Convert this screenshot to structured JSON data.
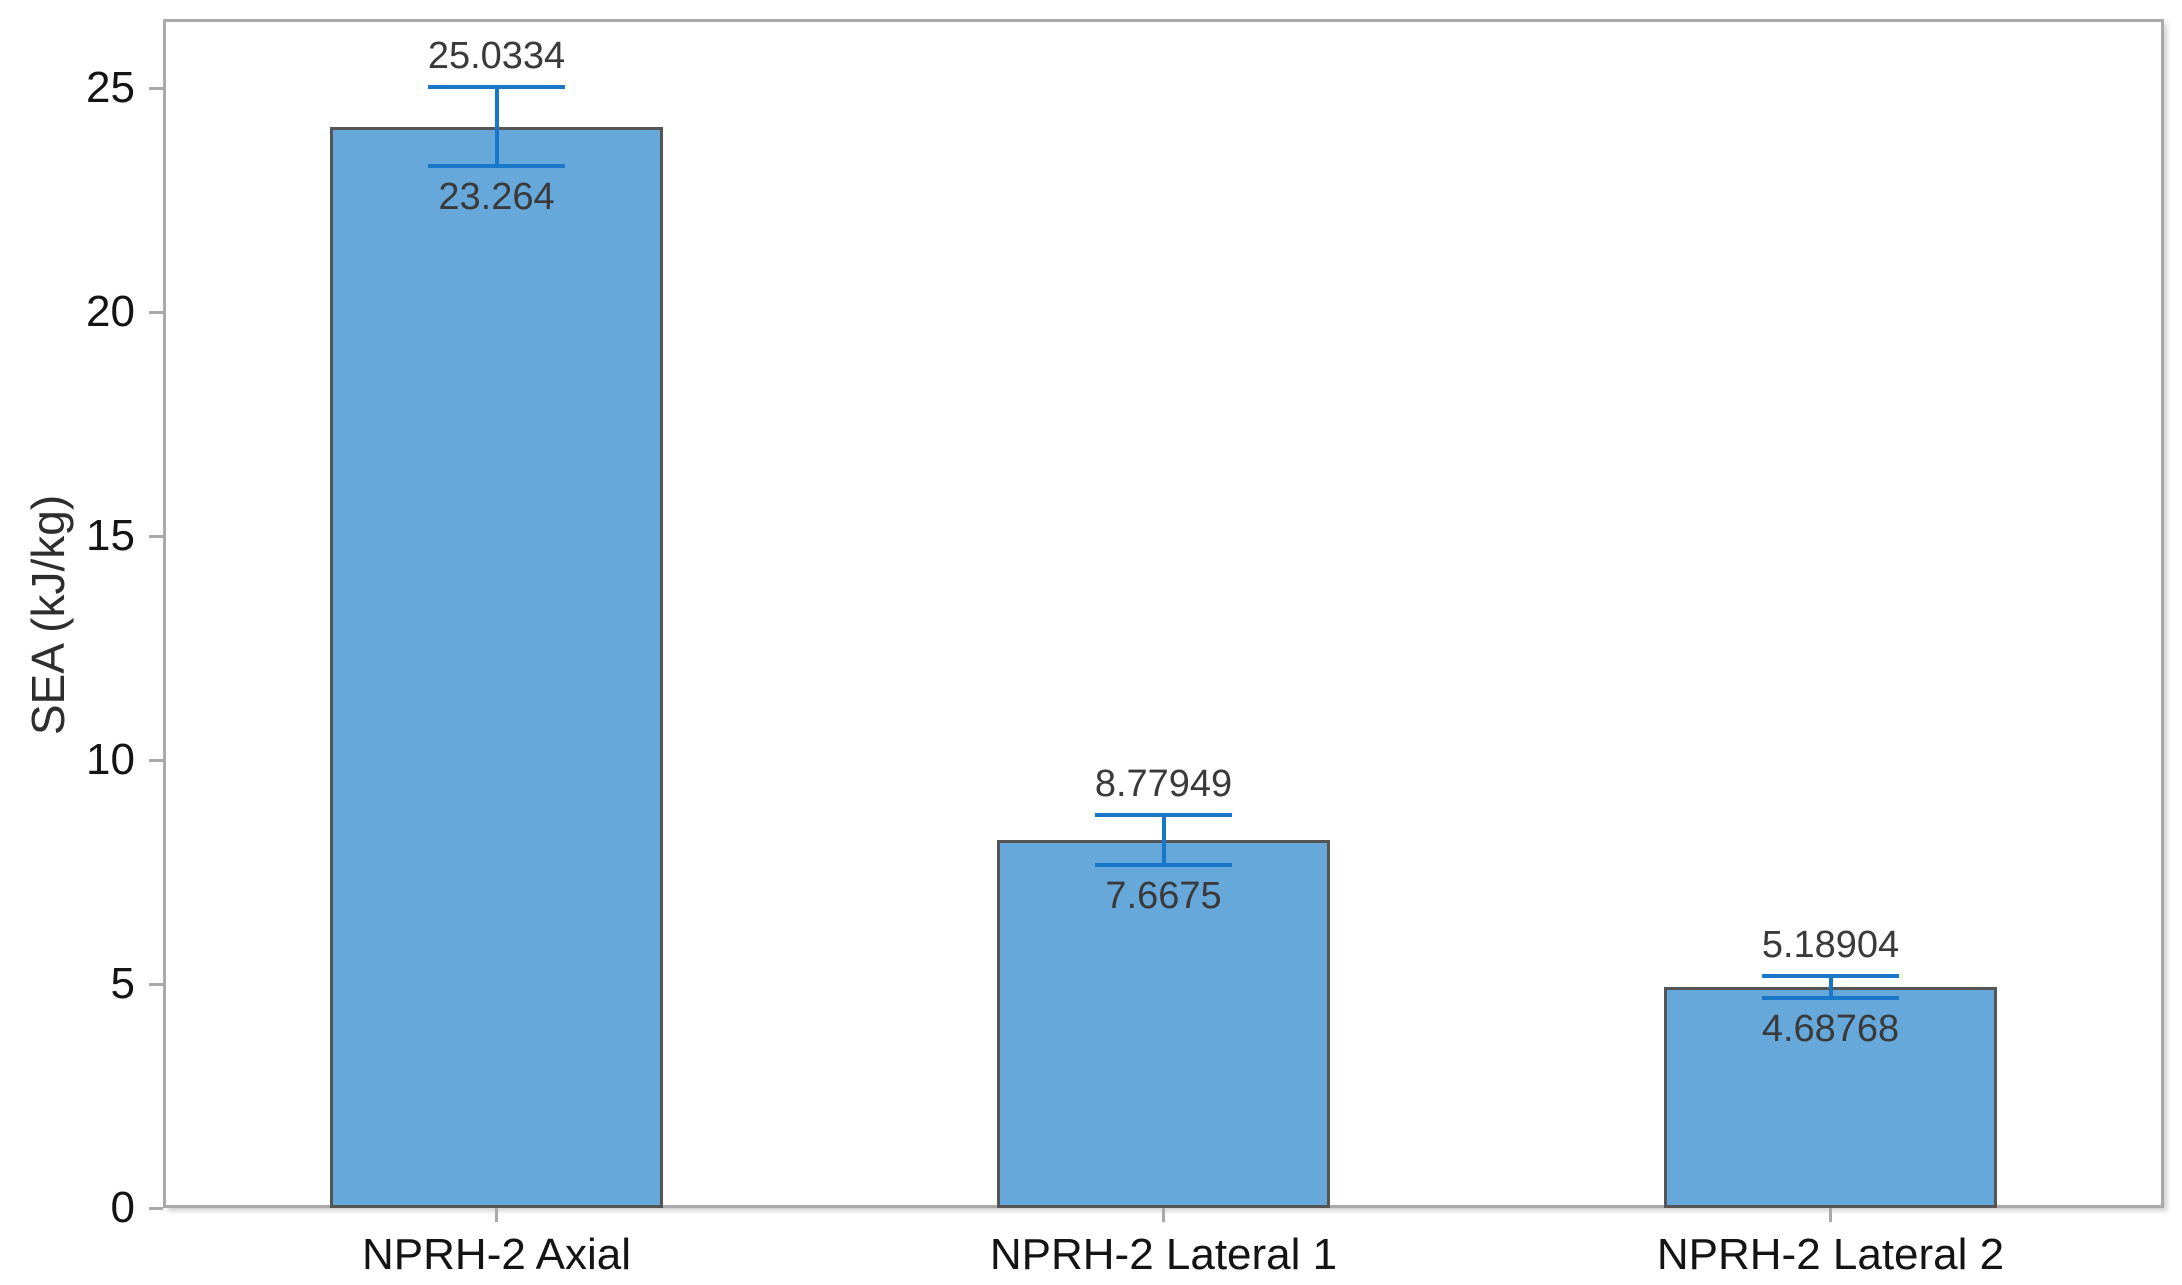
{
  "chart_data": {
    "type": "bar",
    "title": "",
    "xlabel": "",
    "ylabel": "SEA (kJ/kg)",
    "categories": [
      "NPRH-2 Axial",
      "NPRH-2 Lateral 1",
      "NPRH-2 Lateral 2"
    ],
    "values": [
      24.1487,
      8.2235,
      4.93836
    ],
    "error_bars": {
      "upper": [
        25.0334,
        8.77949,
        5.18904
      ],
      "lower": [
        23.264,
        7.6675,
        4.68768
      ],
      "upper_labels": [
        "25.0334",
        "8.77949",
        "5.18904"
      ],
      "lower_labels": [
        "23.264",
        "7.6675",
        "4.68768"
      ]
    },
    "y_ticks": [
      0,
      5,
      10,
      15,
      20,
      25
    ],
    "ylim": [
      0,
      26.55
    ],
    "grid": false,
    "legend": null,
    "colors": {
      "bar_fill": "#67a8db",
      "bar_border": "#555555",
      "error_bar": "#1877c9",
      "axis_frame": "#a9a9a9",
      "tick_text": "#141414",
      "value_text": "#3a3a3a",
      "axis_title_text": "#2e2e2e"
    }
  }
}
